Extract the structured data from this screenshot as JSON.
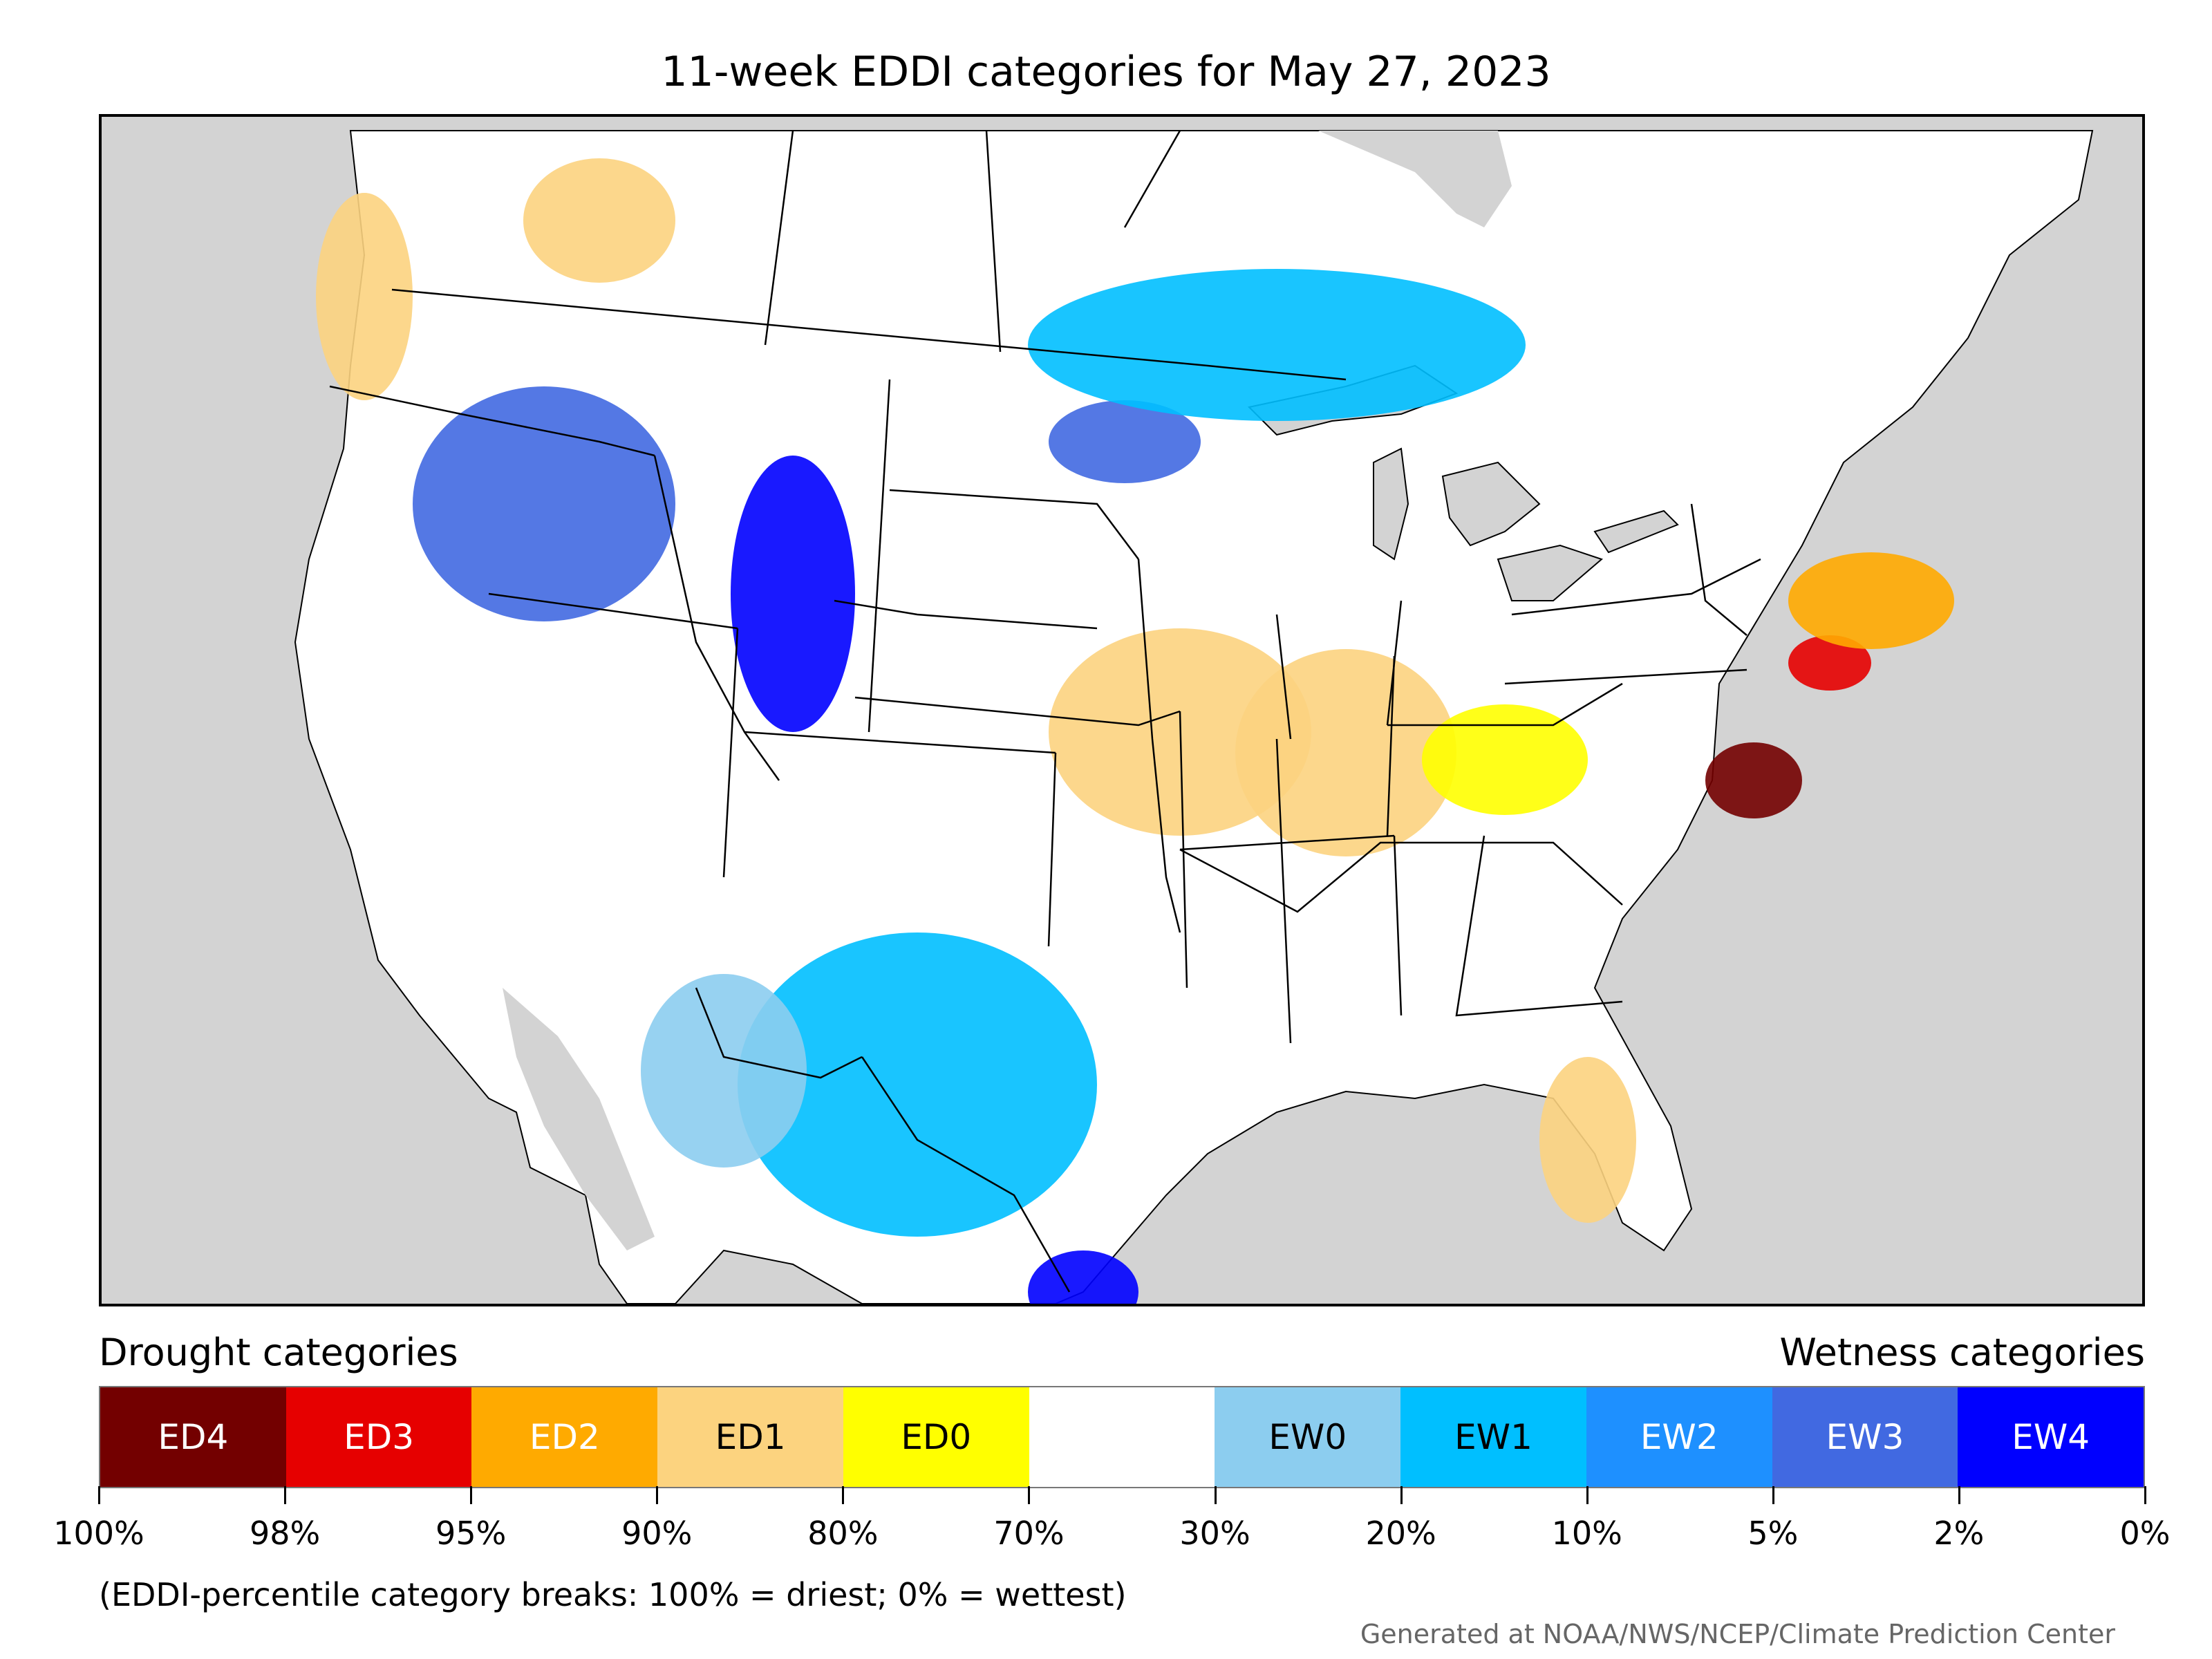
{
  "title": "11-week EDDI categories for May 27, 2023",
  "map": {
    "colors": {
      "ocean_background": "#d3d3d3",
      "land_no_category": "#ffffff",
      "borders": "#000000"
    },
    "regions": [
      {
        "area": "Pacific Northwest coast (Washington)",
        "category": "ED1"
      },
      {
        "area": "Northern Idaho / Montana panhandle",
        "category": "ED1"
      },
      {
        "area": "Oregon / Idaho / Nevada interior",
        "category": "EW3"
      },
      {
        "area": "Northern Utah / Wyoming",
        "category": "EW4"
      },
      {
        "area": "Northern Great Plains (North Dakota)",
        "category": "EW3"
      },
      {
        "area": "Southern Canada prairies",
        "category": "EW1"
      },
      {
        "area": "Kansas",
        "category": "ED1"
      },
      {
        "area": "Missouri / Iowa / Illinois",
        "category": "ED1"
      },
      {
        "area": "Ohio Valley",
        "category": "ED0"
      },
      {
        "area": "Virginia / Maryland",
        "category": "ED4"
      },
      {
        "area": "New Jersey / Long Island",
        "category": "ED3"
      },
      {
        "area": "New England",
        "category": "ED2"
      },
      {
        "area": "Central Florida",
        "category": "ED1"
      },
      {
        "area": "Texas",
        "category": "EW1"
      },
      {
        "area": "Texas Gulf coast",
        "category": "EW4"
      },
      {
        "area": "Southwest / northern Mexico",
        "category": "EW0"
      }
    ]
  },
  "legend": {
    "drought_heading": "Drought categories",
    "wetness_heading": "Wetness categories",
    "categories": [
      {
        "label": "ED4",
        "color": "#730000",
        "text_color": "#ffffff"
      },
      {
        "label": "ED3",
        "color": "#e60000",
        "text_color": "#ffffff"
      },
      {
        "label": "ED2",
        "color": "#ffaa00",
        "text_color": "#ffffff"
      },
      {
        "label": "ED1",
        "color": "#fcd37f",
        "text_color": "#000000"
      },
      {
        "label": "ED0",
        "color": "#ffff00",
        "text_color": "#000000"
      },
      {
        "label": "",
        "color": "#ffffff",
        "text_color": "#000000"
      },
      {
        "label": "EW0",
        "color": "#8ccdef",
        "text_color": "#000000"
      },
      {
        "label": "EW1",
        "color": "#00bfff",
        "text_color": "#000000"
      },
      {
        "label": "EW2",
        "color": "#1e90ff",
        "text_color": "#ffffff"
      },
      {
        "label": "EW3",
        "color": "#4169e1",
        "text_color": "#ffffff"
      },
      {
        "label": "EW4",
        "color": "#0000ff",
        "text_color": "#ffffff"
      }
    ],
    "breaks": [
      "100%",
      "98%",
      "95%",
      "90%",
      "80%",
      "70%",
      "30%",
      "20%",
      "10%",
      "5%",
      "2%",
      "0%"
    ]
  },
  "footnote": "(EDDI-percentile category breaks: 100% = driest; 0% = wettest)",
  "credit": "Generated at NOAA/NWS/NCEP/Climate Prediction Center"
}
